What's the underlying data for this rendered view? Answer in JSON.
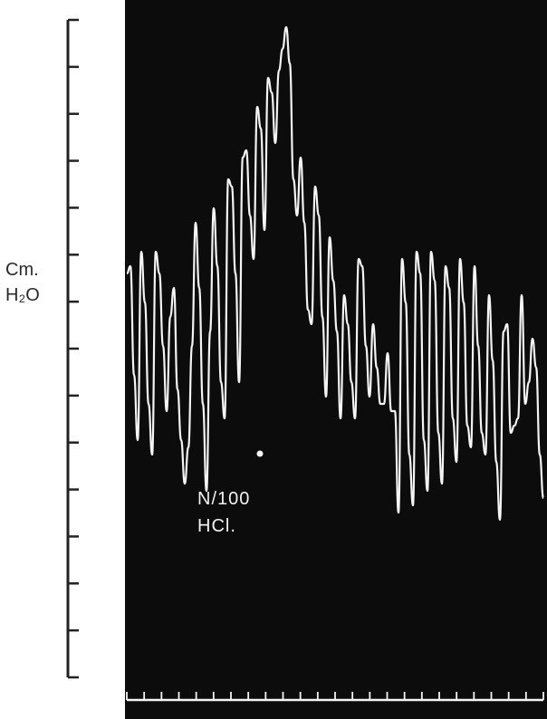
{
  "chart_data": {
    "type": "line",
    "title": "",
    "xlabel": "",
    "ylabel": "Cm. H₂O",
    "ylabel_lines": [
      "Cm.",
      "H₂O"
    ],
    "y_ticks": 14,
    "x_ticks": 24,
    "grid": false,
    "legend": "none",
    "annotation": [
      "N/100",
      "HCl."
    ],
    "colors": {
      "panel": "#0c0c0c",
      "trace": "#f4f4f4",
      "axis": "#222222"
    },
    "series": [
      {
        "x": [
          0,
          4,
          8,
          12,
          16,
          20,
          24,
          28,
          32,
          36,
          40,
          44,
          48,
          52,
          56,
          60,
          64,
          68,
          72,
          76,
          80,
          84,
          88,
          92,
          96,
          100,
          104,
          108,
          112,
          116,
          120,
          124,
          128,
          132,
          136,
          140,
          144,
          148,
          152,
          156,
          160,
          164,
          168,
          172,
          176,
          180,
          184,
          188,
          192,
          196,
          200,
          204,
          208,
          212,
          216,
          220,
          224,
          228,
          232,
          236,
          240,
          244,
          248,
          252,
          256,
          260,
          264,
          268,
          272,
          276,
          280,
          284,
          288,
          292,
          296,
          300,
          304,
          308,
          312,
          316,
          320,
          324,
          328,
          332,
          336,
          340,
          344,
          348,
          352,
          356,
          360,
          364,
          368,
          372,
          376,
          380,
          384,
          388,
          392,
          396,
          400,
          404,
          408,
          412,
          416,
          420,
          424,
          428,
          432,
          436,
          440,
          444,
          448,
          452,
          456,
          460
        ],
        "y": [
          5.6,
          5.7,
          4.2,
          3.3,
          5.9,
          5.2,
          3.8,
          3.1,
          5.9,
          5.6,
          4.6,
          3.7,
          5.0,
          5.4,
          4.0,
          3.3,
          2.7,
          3.2,
          4.6,
          6.3,
          5.4,
          3.8,
          2.6,
          4.8,
          6.5,
          5.7,
          4.1,
          3.6,
          6.9,
          6.8,
          5.6,
          4.1,
          7.2,
          7.3,
          6.4,
          5.8,
          7.9,
          7.6,
          6.2,
          8.3,
          8.1,
          7.4,
          8.4,
          8.7,
          9.0,
          8.5,
          6.9,
          6.4,
          7.2,
          6.3,
          5.1,
          4.9,
          6.8,
          6.4,
          5.0,
          3.9,
          6.1,
          5.5,
          4.8,
          3.6,
          5.3,
          4.9,
          4.1,
          3.6,
          5.8,
          5.7,
          4.6,
          3.9,
          4.9,
          4.3,
          3.8,
          3.8,
          4.5,
          3.7,
          3.7,
          2.3,
          5.8,
          5.2,
          3.1,
          2.4,
          5.9,
          5.6,
          3.3,
          2.6,
          5.9,
          5.5,
          3.4,
          2.7,
          5.7,
          5.4,
          3.6,
          3.0,
          5.8,
          5.2,
          3.5,
          3.2,
          5.7,
          4.6,
          3.4,
          3.1,
          5.3,
          4.4,
          3.0,
          2.2,
          4.8,
          4.9,
          3.4,
          3.5,
          3.6,
          5.3,
          3.8,
          4.1,
          4.7,
          4.3,
          3.1,
          2.5
        ]
      }
    ]
  }
}
